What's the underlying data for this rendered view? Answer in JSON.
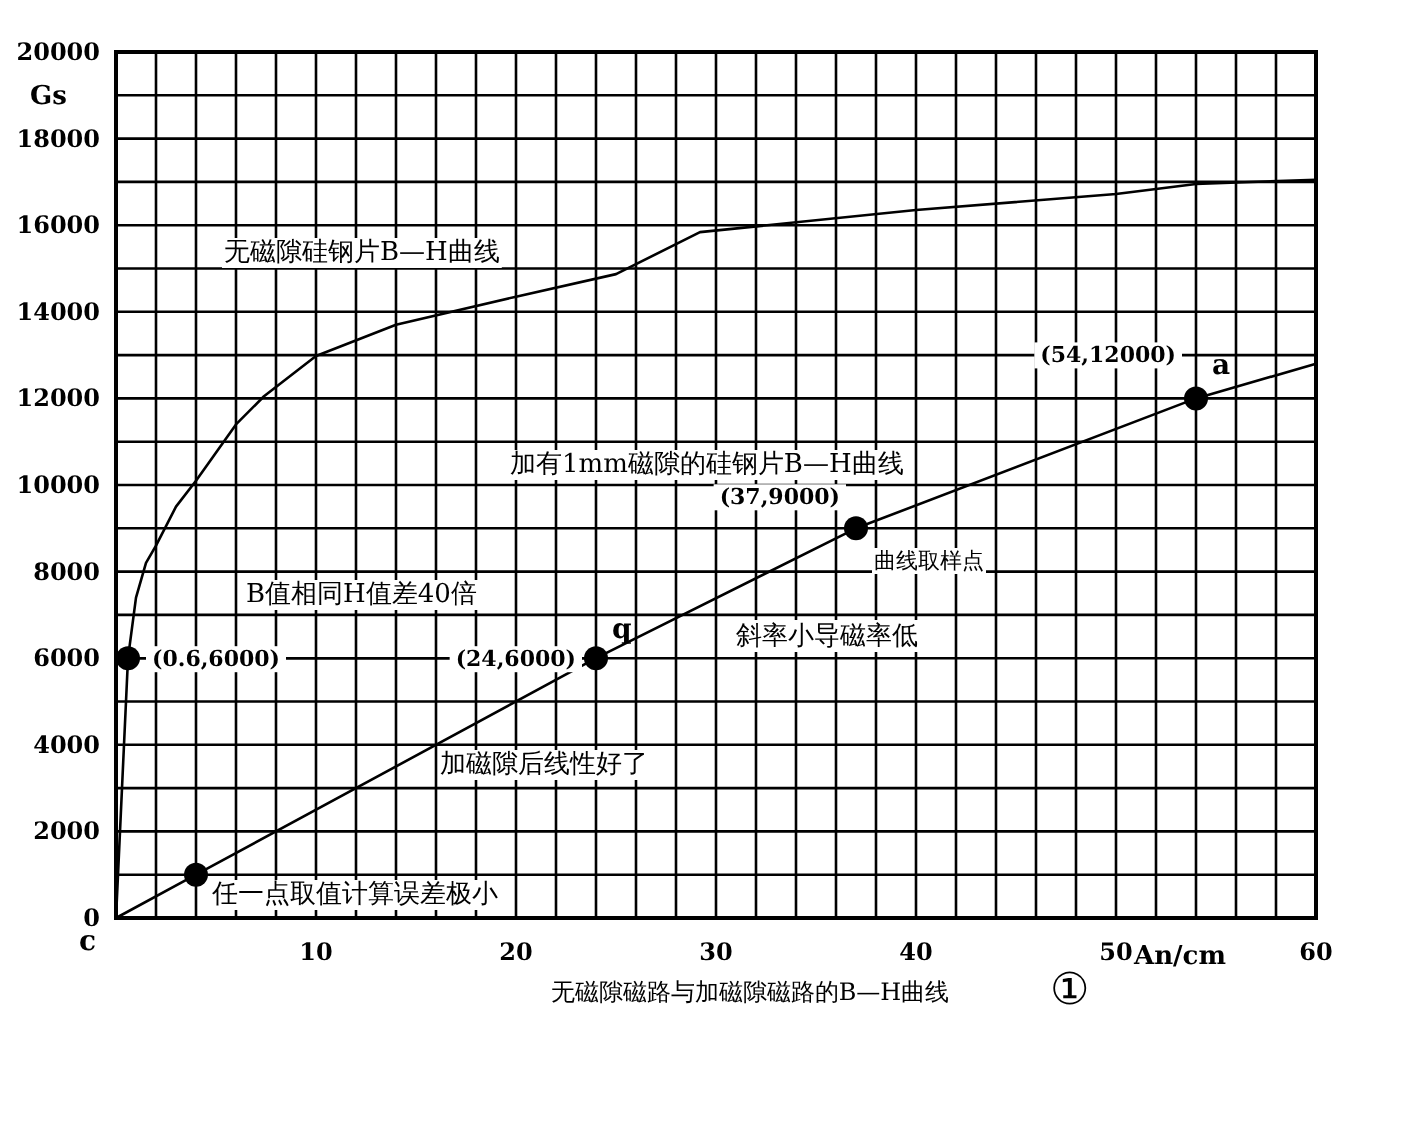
{
  "chart_data": {
    "type": "line",
    "xlabel": "An/cm",
    "ylabel": "Gs",
    "xlim": [
      0,
      60
    ],
    "ylim": [
      0,
      20000
    ],
    "xticks": [
      {
        "value": 0,
        "label": null
      },
      {
        "value": 2,
        "label": null
      },
      {
        "value": 4,
        "label": null
      },
      {
        "value": 6,
        "label": null
      },
      {
        "value": 8,
        "label": null
      },
      10,
      {
        "value": 12,
        "label": null
      },
      {
        "value": 14,
        "label": null
      },
      {
        "value": 16,
        "label": null
      },
      {
        "value": 18,
        "label": null
      },
      20,
      {
        "value": 22,
        "label": null
      },
      {
        "value": 24,
        "label": null
      },
      {
        "value": 26,
        "label": null
      },
      {
        "value": 28,
        "label": null
      },
      30,
      {
        "value": 32,
        "label": null
      },
      {
        "value": 34,
        "label": null
      },
      {
        "value": 36,
        "label": null
      },
      {
        "value": 38,
        "label": null
      },
      40,
      {
        "value": 42,
        "label": null
      },
      {
        "value": 44,
        "label": null
      },
      {
        "value": 46,
        "label": null
      },
      {
        "value": 48,
        "label": null
      },
      50,
      {
        "value": 52,
        "label": null
      },
      {
        "value": 54,
        "label": null
      },
      {
        "value": 56,
        "label": null
      },
      {
        "value": 58,
        "label": null
      },
      60
    ],
    "yticks": [
      0,
      {
        "value": 1000,
        "label": null
      },
      2000,
      {
        "value": 3000,
        "label": null
      },
      4000,
      {
        "value": 5000,
        "label": null
      },
      6000,
      {
        "value": 7000,
        "label": null
      },
      8000,
      {
        "value": 9000,
        "label": null
      },
      10000,
      {
        "value": 11000,
        "label": null
      },
      12000,
      {
        "value": 13000,
        "label": null
      },
      14000,
      {
        "value": 15000,
        "label": null
      },
      16000,
      {
        "value": 17000,
        "label": null
      },
      18000,
      {
        "value": 19000,
        "label": null
      },
      20000
    ],
    "grid": true,
    "series": [
      {
        "color": "#000000",
        "x": [
          0,
          0.3,
          0.6,
          1,
          1.5,
          2,
          3,
          4,
          6,
          7.4,
          10,
          14,
          20,
          25,
          29.2,
          40,
          50,
          54,
          60
        ],
        "values": [
          0,
          3000,
          6000,
          7400,
          8200,
          8600,
          9500,
          10100,
          11400,
          12050,
          12980,
          13700,
          14350,
          14870,
          15840,
          16350,
          16720,
          16950,
          17050
        ]
      },
      {
        "color": "#000000",
        "x": [
          0,
          4,
          24,
          37,
          54,
          60
        ],
        "values": [
          0,
          1000,
          6000,
          9000,
          12000,
          12800
        ]
      },
      {
        "color": "#000000",
        "x": [
          0.6,
          24
        ],
        "values": [
          6000,
          6000
        ]
      },
      {
        "type": "scatter",
        "marker": "circle",
        "color": "#000000",
        "x": [
          0.6,
          4,
          24,
          37,
          54
        ],
        "values": [
          6000,
          1000,
          6000,
          9000,
          12000
        ]
      }
    ],
    "annotations": [
      "无磁隙硅钢片B—H曲线",
      "加有1mm磁隙的硅钢片B—H曲线",
      "B值相同H值差40倍",
      "斜率小导磁率低",
      "加磁隙后线性好了",
      "任一点取值计算误差极小",
      "曲线取样点",
      "无磁隙磁路与加磁隙磁路的B—H曲线",
      "①",
      {
        "text": "(0.6,6000)",
        "x": 0.6,
        "y": 6000
      },
      {
        "text": "(24,6000)",
        "x": 24,
        "y": 6000
      },
      {
        "text": "(37,9000)",
        "x": 37,
        "y": 9000
      },
      {
        "text": "(54,12000)",
        "x": 54,
        "y": 12000
      },
      {
        "text": "q",
        "x": 24,
        "y": 6000
      },
      {
        "text": "a",
        "x": 54,
        "y": 12000
      },
      {
        "text": "c",
        "x": 0,
        "y": 0
      }
    ]
  }
}
